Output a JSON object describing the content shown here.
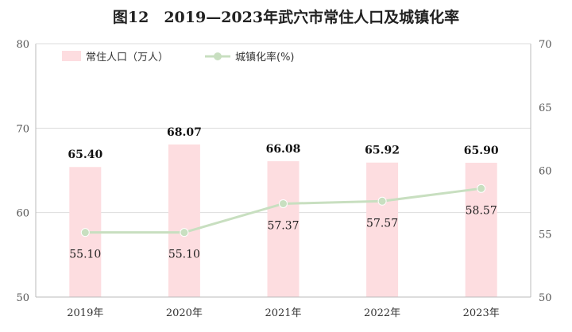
{
  "chart_data": {
    "type": "bar+line",
    "title": "图12　2019—2023年武穴市常住人口及城镇化率",
    "categories": [
      "2019年",
      "2020年",
      "2021年",
      "2022年",
      "2023年"
    ],
    "series": [
      {
        "name": "常住人口（万人）",
        "type": "bar",
        "axis": "left",
        "values": [
          65.4,
          68.07,
          66.08,
          65.92,
          65.9
        ],
        "labels": [
          "65.40",
          "68.07",
          "66.08",
          "65.92",
          "65.90"
        ]
      },
      {
        "name": "城镇化率(%)",
        "type": "line",
        "axis": "right",
        "values": [
          55.1,
          55.1,
          57.37,
          57.57,
          58.57
        ],
        "labels": [
          "55.10",
          "55.10",
          "57.37",
          "57.57",
          "58.57"
        ]
      }
    ],
    "y_left": {
      "min": 50,
      "max": 80,
      "ticks": [
        "50",
        "60",
        "70",
        "80"
      ]
    },
    "y_right": {
      "min": 50,
      "max": 70,
      "ticks": [
        "50",
        "55",
        "60",
        "65",
        "70"
      ]
    },
    "grid": true,
    "legend_position": "top-left",
    "colors": {
      "bar": "#fddde0",
      "line": "#c8dfc0",
      "marker": "#c8dfc0",
      "grid": "#dddddd",
      "axis": "#bbbbbb"
    }
  }
}
